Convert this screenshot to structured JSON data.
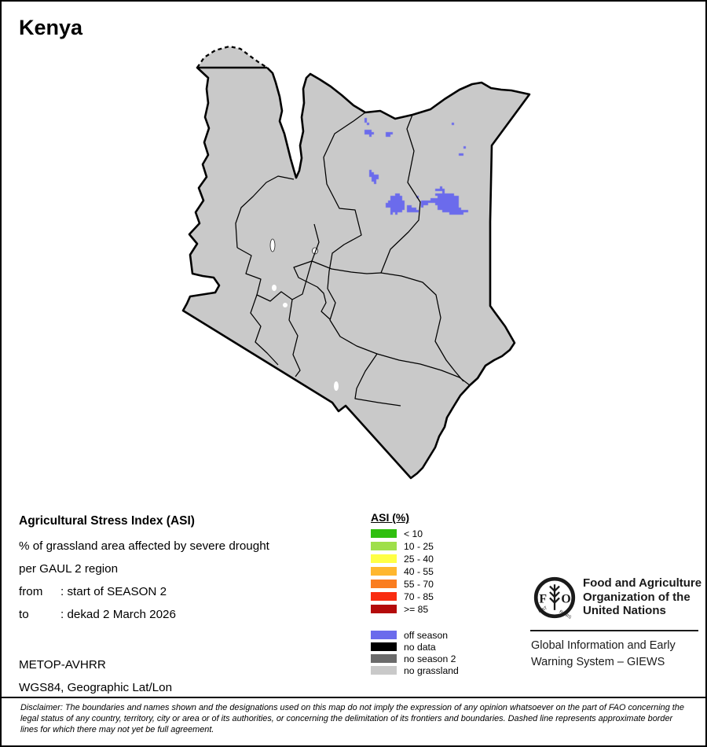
{
  "title": "Kenya",
  "info": {
    "heading": "Agricultural Stress Index (ASI)",
    "line1": "% of grassland area affected by severe drought",
    "line2": "per GAUL 2 region",
    "from_label": "from",
    "from_value": ": start of SEASON 2",
    "to_label": "to",
    "to_value": ": dekad 2 March 2026",
    "sensor": "METOP-AVHRR",
    "projection": "WGS84, Geographic Lat/Lon"
  },
  "legend": {
    "title": "ASI (%)",
    "classes": [
      {
        "label": "< 10",
        "color": "#2FBF0F"
      },
      {
        "label": "10 - 25",
        "color": "#9FDF4A"
      },
      {
        "label": "25 - 40",
        "color": "#FFFF45"
      },
      {
        "label": "40 - 55",
        "color": "#FFB72E"
      },
      {
        "label": "55 - 70",
        "color": "#FA7D20"
      },
      {
        "label": "70 - 85",
        "color": "#F92C10"
      },
      {
        "label": ">= 85",
        "color": "#B40A0A"
      }
    ],
    "extra": [
      {
        "label": "off season",
        "color": "#6B6BEC"
      },
      {
        "label": "no data",
        "color": "#000000"
      },
      {
        "label": "no season 2",
        "color": "#6B6B6B"
      },
      {
        "label": "no grassland",
        "color": "#C9C9C9"
      }
    ]
  },
  "org": {
    "logo_text": "FAO",
    "logo_motto_left": "FIAT",
    "logo_motto_right": "PANIS",
    "name_lines": [
      "Food and Agriculture",
      "Organization of the",
      "United Nations"
    ],
    "giews_lines": [
      "Global Information and Early",
      "Warning System – GIEWS"
    ]
  },
  "disclaimer": "Disclaimer: The boundaries and names shown and the designations used on this map do not imply the expression of any opinion whatsoever on the part of FAO concerning the legal status of any country, territory, city or area or of its authorities, or concerning the delimitation of its frontiers and boundaries. Dashed line represents approximate border lines for which there may not yet be full agreement."
}
